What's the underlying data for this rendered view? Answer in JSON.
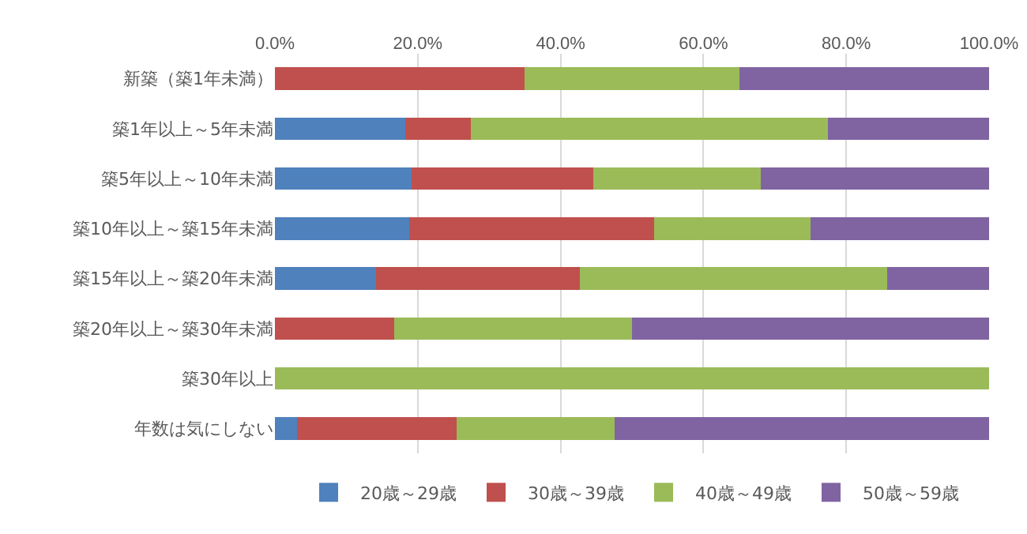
{
  "chart_data": {
    "type": "bar",
    "orientation": "horizontal",
    "stacked": true,
    "grid": "x",
    "legend": "bottom",
    "categories": [
      "新築（築1年未満）",
      "築1年以上～5年未満",
      "築5年以上～10年未満",
      "築10年以上～築15年未満",
      "築15年以上～築20年未満",
      "築20年以上～築30年未満",
      "築30年以上",
      "年数は気にしない"
    ],
    "xlim": [
      0,
      100
    ],
    "xticks": [
      {
        "value": 0,
        "label": "0.0%"
      },
      {
        "value": 20,
        "label": "20.0%"
      },
      {
        "value": 40,
        "label": "40.0%"
      },
      {
        "value": 60,
        "label": "60.0%"
      },
      {
        "value": 80,
        "label": "80.0%"
      },
      {
        "value": 100,
        "label": "100.0%"
      }
    ],
    "series": [
      {
        "name": "20歳～29歳",
        "color": "#4f81bd",
        "values": [
          0,
          18.2,
          19.1,
          18.8,
          14.2,
          0,
          0,
          3.1
        ]
      },
      {
        "name": "30歳～39歳",
        "color": "#c0504d",
        "values": [
          35,
          9.2,
          25.5,
          34.3,
          28.5,
          16.7,
          0,
          22.3
        ]
      },
      {
        "name": "40歳～49歳",
        "color": "#9bbb59",
        "values": [
          30,
          50,
          23.4,
          21.9,
          43,
          33.3,
          100,
          22.2
        ]
      },
      {
        "name": "50歳～59歳",
        "color": "#8064a2",
        "values": [
          35,
          22.6,
          32,
          25,
          14.3,
          50,
          0,
          52.4
        ]
      }
    ]
  }
}
